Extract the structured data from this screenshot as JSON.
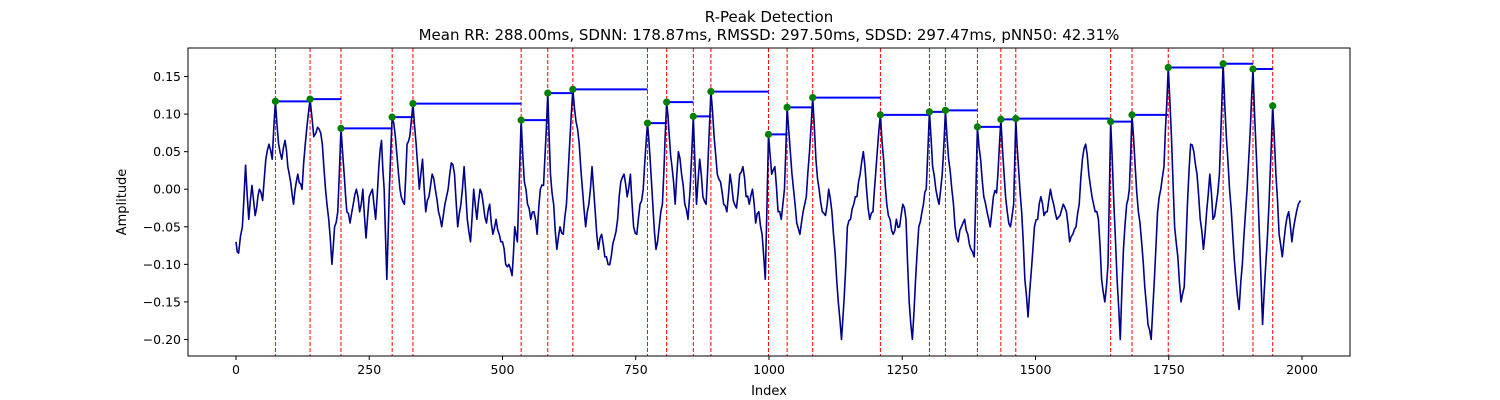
{
  "chart_data": {
    "type": "line",
    "title": "R-Peak Detection",
    "subtitle": "Mean RR: 288.00ms, SDNN: 178.87ms, RMSSD: 297.50ms, SDSD: 297.47ms, pNN50: 42.31%",
    "xlabel": "Index",
    "ylabel": "Amplitude",
    "xlim": [
      -90,
      2090
    ],
    "ylim": [
      -0.222,
      0.188
    ],
    "xticks": [
      0,
      250,
      500,
      750,
      1000,
      1250,
      1500,
      1750,
      2000
    ],
    "yticks": [
      -0.2,
      -0.15,
      -0.1,
      -0.05,
      0.0,
      0.05,
      0.1,
      0.15
    ],
    "xtick_labels": [
      "0",
      "250",
      "500",
      "750",
      "1000",
      "1250",
      "1500",
      "1750",
      "2000"
    ],
    "ytick_labels": [
      "−0.20",
      "−0.15",
      "−0.10",
      "−0.05",
      "0.00",
      "0.05",
      "0.10",
      "0.15"
    ],
    "colors": {
      "signal": "#00008b",
      "peak_line": "#ff0000",
      "peak_marker": "#008000",
      "rr_segment": "#0000ff"
    },
    "signal": {
      "x_start": 0,
      "x_end": 1997,
      "waypoints": [
        [
          0,
          -0.07
        ],
        [
          5,
          -0.085
        ],
        [
          12,
          -0.05
        ],
        [
          18,
          0.032
        ],
        [
          24,
          -0.04
        ],
        [
          30,
          0.005
        ],
        [
          36,
          -0.035
        ],
        [
          44,
          0.0
        ],
        [
          50,
          -0.015
        ],
        [
          56,
          0.04
        ],
        [
          62,
          0.06
        ],
        [
          68,
          0.04
        ],
        [
          74,
          0.117
        ],
        [
          80,
          0.06
        ],
        [
          86,
          0.04
        ],
        [
          92,
          0.065
        ],
        [
          100,
          0.02
        ],
        [
          108,
          -0.02
        ],
        [
          116,
          0.02
        ],
        [
          124,
          0.0
        ],
        [
          130,
          0.06
        ],
        [
          139,
          0.12
        ],
        [
          146,
          0.07
        ],
        [
          150,
          0.075
        ],
        [
          156,
          0.08
        ],
        [
          162,
          0.06
        ],
        [
          168,
          0.0
        ],
        [
          174,
          -0.04
        ],
        [
          180,
          -0.1
        ],
        [
          185,
          -0.05
        ],
        [
          191,
          -0.03
        ],
        [
          197,
          0.081
        ],
        [
          203,
          0.02
        ],
        [
          208,
          -0.03
        ],
        [
          214,
          -0.045
        ],
        [
          220,
          -0.02
        ],
        [
          226,
          0.0
        ],
        [
          232,
          -0.03
        ],
        [
          238,
          0.0
        ],
        [
          244,
          -0.065
        ],
        [
          250,
          -0.01
        ],
        [
          256,
          0.0
        ],
        [
          262,
          -0.04
        ],
        [
          268,
          0.03
        ],
        [
          273,
          0.065
        ],
        [
          278,
          0.0
        ],
        [
          283,
          -0.12
        ],
        [
          288,
          0.005
        ],
        [
          293,
          0.096
        ],
        [
          299,
          0.07
        ],
        [
          305,
          0.02
        ],
        [
          310,
          -0.01
        ],
        [
          316,
          -0.02
        ],
        [
          321,
          0.06
        ],
        [
          326,
          0.07
        ],
        [
          332,
          0.114
        ],
        [
          338,
          0.06
        ],
        [
          344,
          0.0
        ],
        [
          350,
          0.04
        ],
        [
          356,
          -0.03
        ],
        [
          362,
          -0.01
        ],
        [
          368,
          0.02
        ],
        [
          374,
          0.0
        ],
        [
          380,
          -0.03
        ],
        [
          386,
          -0.05
        ],
        [
          392,
          -0.02
        ],
        [
          398,
          0.0
        ],
        [
          404,
          0.035
        ],
        [
          410,
          0.02
        ],
        [
          416,
          -0.05
        ],
        [
          422,
          -0.02
        ],
        [
          428,
          0.03
        ],
        [
          434,
          -0.04
        ],
        [
          440,
          -0.07
        ],
        [
          446,
          0.0
        ],
        [
          452,
          -0.04
        ],
        [
          458,
          0.0
        ],
        [
          464,
          -0.02
        ],
        [
          470,
          -0.045
        ],
        [
          476,
          -0.02
        ],
        [
          482,
          -0.06
        ],
        [
          488,
          -0.04
        ],
        [
          494,
          -0.06
        ],
        [
          500,
          -0.07
        ],
        [
          506,
          -0.1
        ],
        [
          512,
          -0.1
        ],
        [
          518,
          -0.115
        ],
        [
          523,
          -0.05
        ],
        [
          528,
          -0.07
        ],
        [
          535,
          0.092
        ],
        [
          541,
          0.01
        ],
        [
          547,
          -0.02
        ],
        [
          553,
          -0.04
        ],
        [
          559,
          -0.03
        ],
        [
          565,
          -0.06
        ],
        [
          571,
          0.0
        ],
        [
          577,
          0.005
        ],
        [
          585,
          0.128
        ],
        [
          590,
          0.02
        ],
        [
          596,
          -0.02
        ],
        [
          602,
          -0.08
        ],
        [
          608,
          -0.05
        ],
        [
          614,
          -0.06
        ],
        [
          620,
          -0.02
        ],
        [
          626,
          0.06
        ],
        [
          632,
          0.133
        ],
        [
          638,
          0.09
        ],
        [
          644,
          0.06
        ],
        [
          650,
          0.0
        ],
        [
          656,
          -0.05
        ],
        [
          662,
          -0.02
        ],
        [
          668,
          0.03
        ],
        [
          674,
          -0.03
        ],
        [
          680,
          -0.08
        ],
        [
          686,
          -0.06
        ],
        [
          692,
          -0.09
        ],
        [
          698,
          -0.1
        ],
        [
          704,
          -0.09
        ],
        [
          710,
          -0.065
        ],
        [
          716,
          -0.04
        ],
        [
          722,
          0.01
        ],
        [
          728,
          0.02
        ],
        [
          734,
          -0.01
        ],
        [
          740,
          0.02
        ],
        [
          746,
          -0.05
        ],
        [
          752,
          -0.06
        ],
        [
          758,
          -0.02
        ],
        [
          764,
          0.0
        ],
        [
          772,
          0.088
        ],
        [
          777,
          0.04
        ],
        [
          782,
          -0.02
        ],
        [
          788,
          -0.08
        ],
        [
          794,
          -0.05
        ],
        [
          800,
          -0.02
        ],
        [
          808,
          0.116
        ],
        [
          813,
          0.07
        ],
        [
          818,
          0.03
        ],
        [
          824,
          -0.02
        ],
        [
          830,
          0.05
        ],
        [
          836,
          0.02
        ],
        [
          842,
          -0.02
        ],
        [
          848,
          -0.04
        ],
        [
          852,
          0.0
        ],
        [
          858,
          0.097
        ],
        [
          864,
          -0.02
        ],
        [
          870,
          0.04
        ],
        [
          876,
          -0.01
        ],
        [
          882,
          -0.02
        ],
        [
          891,
          0.13
        ],
        [
          897,
          0.07
        ],
        [
          903,
          0.02
        ],
        [
          909,
          0.01
        ],
        [
          915,
          -0.02
        ],
        [
          921,
          -0.03
        ],
        [
          927,
          0.02
        ],
        [
          933,
          -0.015
        ],
        [
          939,
          -0.025
        ],
        [
          945,
          0.02
        ],
        [
          951,
          0.03
        ],
        [
          957,
          -0.01
        ],
        [
          963,
          -0.02
        ],
        [
          969,
          0.0
        ],
        [
          975,
          -0.045
        ],
        [
          981,
          -0.03
        ],
        [
          987,
          -0.06
        ],
        [
          993,
          -0.12
        ],
        [
          999,
          0.073
        ],
        [
          1005,
          0.02
        ],
        [
          1011,
          0.03
        ],
        [
          1017,
          -0.03
        ],
        [
          1023,
          -0.04
        ],
        [
          1029,
          0.0
        ],
        [
          1034,
          0.109
        ],
        [
          1040,
          0.05
        ],
        [
          1046,
          0.0
        ],
        [
          1052,
          -0.045
        ],
        [
          1058,
          -0.06
        ],
        [
          1064,
          -0.03
        ],
        [
          1070,
          -0.01
        ],
        [
          1076,
          0.05
        ],
        [
          1082,
          0.122
        ],
        [
          1088,
          0.04
        ],
        [
          1094,
          0.0
        ],
        [
          1100,
          -0.03
        ],
        [
          1106,
          -0.035
        ],
        [
          1112,
          0.0
        ],
        [
          1118,
          -0.03
        ],
        [
          1124,
          -0.085
        ],
        [
          1130,
          -0.15
        ],
        [
          1136,
          -0.2
        ],
        [
          1141,
          -0.145
        ],
        [
          1147,
          -0.05
        ],
        [
          1153,
          -0.04
        ],
        [
          1159,
          -0.02
        ],
        [
          1165,
          -0.01
        ],
        [
          1171,
          0.02
        ],
        [
          1177,
          0.05
        ],
        [
          1183,
          0.0
        ],
        [
          1189,
          -0.04
        ],
        [
          1195,
          -0.03
        ],
        [
          1200,
          0.02
        ],
        [
          1209,
          0.099
        ],
        [
          1215,
          0.04
        ],
        [
          1221,
          -0.02
        ],
        [
          1227,
          -0.04
        ],
        [
          1233,
          -0.06
        ],
        [
          1239,
          -0.04
        ],
        [
          1245,
          -0.05
        ],
        [
          1251,
          -0.02
        ],
        [
          1257,
          -0.04
        ],
        [
          1263,
          -0.15
        ],
        [
          1269,
          -0.2
        ],
        [
          1275,
          -0.12
        ],
        [
          1281,
          -0.05
        ],
        [
          1287,
          -0.03
        ],
        [
          1295,
          0.0
        ],
        [
          1301,
          0.103
        ],
        [
          1307,
          0.03
        ],
        [
          1313,
          0.0
        ],
        [
          1319,
          -0.02
        ],
        [
          1325,
          0.02
        ],
        [
          1331,
          0.105
        ],
        [
          1337,
          0.04
        ],
        [
          1343,
          0.0
        ],
        [
          1349,
          -0.05
        ],
        [
          1355,
          -0.07
        ],
        [
          1361,
          -0.05
        ],
        [
          1367,
          -0.04
        ],
        [
          1373,
          -0.06
        ],
        [
          1379,
          -0.08
        ],
        [
          1385,
          -0.09
        ],
        [
          1391,
          0.083
        ],
        [
          1397,
          0.04
        ],
        [
          1403,
          -0.01
        ],
        [
          1409,
          -0.03
        ],
        [
          1415,
          -0.05
        ],
        [
          1421,
          -0.01
        ],
        [
          1427,
          -0.005
        ],
        [
          1435,
          0.093
        ],
        [
          1441,
          0.02
        ],
        [
          1447,
          -0.03
        ],
        [
          1453,
          -0.05
        ],
        [
          1459,
          -0.02
        ],
        [
          1463,
          0.094
        ],
        [
          1468,
          0.03
        ],
        [
          1474,
          -0.03
        ],
        [
          1480,
          -0.12
        ],
        [
          1486,
          -0.17
        ],
        [
          1492,
          -0.11
        ],
        [
          1498,
          -0.05
        ],
        [
          1504,
          -0.04
        ],
        [
          1510,
          -0.01
        ],
        [
          1516,
          -0.035
        ],
        [
          1522,
          -0.03
        ],
        [
          1528,
          0.0
        ],
        [
          1534,
          -0.02
        ],
        [
          1540,
          -0.04
        ],
        [
          1546,
          -0.035
        ],
        [
          1552,
          -0.02
        ],
        [
          1558,
          -0.03
        ],
        [
          1564,
          -0.07
        ],
        [
          1570,
          -0.06
        ],
        [
          1576,
          -0.05
        ],
        [
          1582,
          -0.02
        ],
        [
          1588,
          0.04
        ],
        [
          1594,
          0.06
        ],
        [
          1600,
          0.02
        ],
        [
          1606,
          -0.01
        ],
        [
          1612,
          -0.03
        ],
        [
          1618,
          -0.04
        ],
        [
          1624,
          -0.12
        ],
        [
          1630,
          -0.15
        ],
        [
          1636,
          -0.1
        ],
        [
          1641,
          0.09
        ],
        [
          1647,
          -0.02
        ],
        [
          1653,
          -0.12
        ],
        [
          1659,
          -0.2
        ],
        [
          1665,
          -0.08
        ],
        [
          1671,
          -0.02
        ],
        [
          1676,
          0.0
        ],
        [
          1681,
          0.099
        ],
        [
          1687,
          0.03
        ],
        [
          1693,
          -0.03
        ],
        [
          1699,
          -0.07
        ],
        [
          1705,
          -0.13
        ],
        [
          1711,
          -0.18
        ],
        [
          1717,
          -0.2
        ],
        [
          1723,
          -0.12
        ],
        [
          1729,
          -0.03
        ],
        [
          1735,
          0.0
        ],
        [
          1741,
          0.03
        ],
        [
          1749,
          0.162
        ],
        [
          1755,
          0.07
        ],
        [
          1761,
          -0.05
        ],
        [
          1767,
          -0.09
        ],
        [
          1773,
          -0.15
        ],
        [
          1779,
          -0.13
        ],
        [
          1785,
          -0.02
        ],
        [
          1791,
          0.06
        ],
        [
          1797,
          0.05
        ],
        [
          1803,
          0.02
        ],
        [
          1809,
          -0.04
        ],
        [
          1815,
          -0.08
        ],
        [
          1821,
          -0.03
        ],
        [
          1827,
          0.02
        ],
        [
          1833,
          -0.04
        ],
        [
          1839,
          -0.02
        ],
        [
          1845,
          0.02
        ],
        [
          1852,
          0.167
        ],
        [
          1858,
          0.07
        ],
        [
          1864,
          0.0
        ],
        [
          1870,
          -0.06
        ],
        [
          1876,
          -0.12
        ],
        [
          1882,
          -0.16
        ],
        [
          1888,
          -0.1
        ],
        [
          1894,
          -0.03
        ],
        [
          1900,
          0.04
        ],
        [
          1908,
          0.16
        ],
        [
          1914,
          0.05
        ],
        [
          1920,
          -0.06
        ],
        [
          1926,
          -0.18
        ],
        [
          1932,
          -0.1
        ],
        [
          1938,
          -0.02
        ],
        [
          1945,
          0.111
        ],
        [
          1951,
          0.02
        ],
        [
          1957,
          -0.06
        ],
        [
          1963,
          -0.09
        ],
        [
          1969,
          -0.05
        ],
        [
          1975,
          -0.03
        ],
        [
          1981,
          -0.07
        ],
        [
          1987,
          -0.04
        ],
        [
          1993,
          -0.02
        ],
        [
          1997,
          -0.015
        ]
      ]
    },
    "peaks": {
      "x": [
        74,
        139,
        197,
        293,
        332,
        535,
        585,
        632,
        772,
        808,
        858,
        891,
        999,
        1034,
        1082,
        1209,
        1301,
        1331,
        1391,
        1435,
        1463,
        1641,
        1681,
        1749,
        1852,
        1908,
        1945
      ],
      "y": [
        0.117,
        0.12,
        0.081,
        0.096,
        0.114,
        0.092,
        0.128,
        0.133,
        0.088,
        0.116,
        0.097,
        0.13,
        0.073,
        0.109,
        0.122,
        0.099,
        0.103,
        0.105,
        0.083,
        0.093,
        0.094,
        0.09,
        0.099,
        0.162,
        0.167,
        0.16,
        0.111
      ]
    },
    "rr_intervals": {
      "description": "horizontal blue segments from each peak to the next peak at the peak's amplitude"
    },
    "grid": false,
    "legend": "none"
  }
}
